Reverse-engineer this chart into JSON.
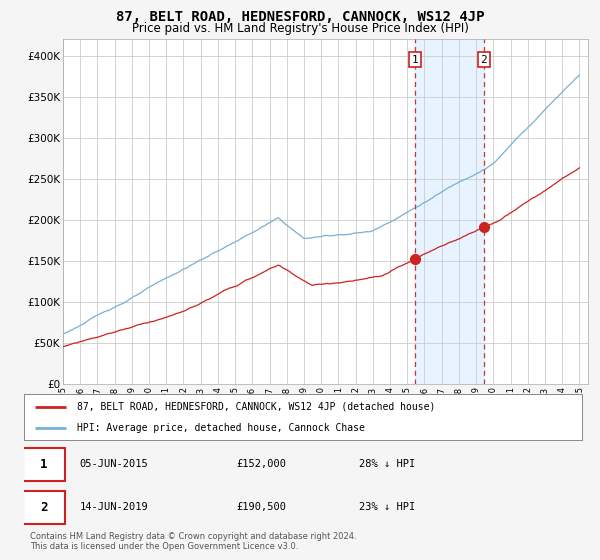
{
  "title": "87, BELT ROAD, HEDNESFORD, CANNOCK, WS12 4JP",
  "subtitle": "Price paid vs. HM Land Registry's House Price Index (HPI)",
  "ylabel_ticks": [
    "£0",
    "£50K",
    "£100K",
    "£150K",
    "£200K",
    "£250K",
    "£300K",
    "£350K",
    "£400K"
  ],
  "ytick_values": [
    0,
    50000,
    100000,
    150000,
    200000,
    250000,
    300000,
    350000,
    400000
  ],
  "ylim": [
    0,
    420000
  ],
  "xlim_start": 1995.3,
  "xlim_end": 2025.5,
  "background_color": "#f5f5f5",
  "plot_bg_color": "#ffffff",
  "grid_color": "#cccccc",
  "hpi_color": "#7ab0d4",
  "price_color": "#cc2222",
  "shade_color": "#ddeeff",
  "marker1_x": 2015.43,
  "marker1_y": 152000,
  "marker2_x": 2019.45,
  "marker2_y": 190500,
  "dashed_line_color": "#cc3333",
  "legend_label_price": "87, BELT ROAD, HEDNESFORD, CANNOCK, WS12 4JP (detached house)",
  "legend_label_hpi": "HPI: Average price, detached house, Cannock Chase",
  "table_row1": [
    "1",
    "05-JUN-2015",
    "£152,000",
    "28% ↓ HPI"
  ],
  "table_row2": [
    "2",
    "14-JUN-2019",
    "£190,500",
    "23% ↓ HPI"
  ],
  "footnote": "Contains HM Land Registry data © Crown copyright and database right 2024.\nThis data is licensed under the Open Government Licence v3.0.",
  "title_fontsize": 10,
  "subtitle_fontsize": 8.5,
  "tick_fontsize": 7.5
}
